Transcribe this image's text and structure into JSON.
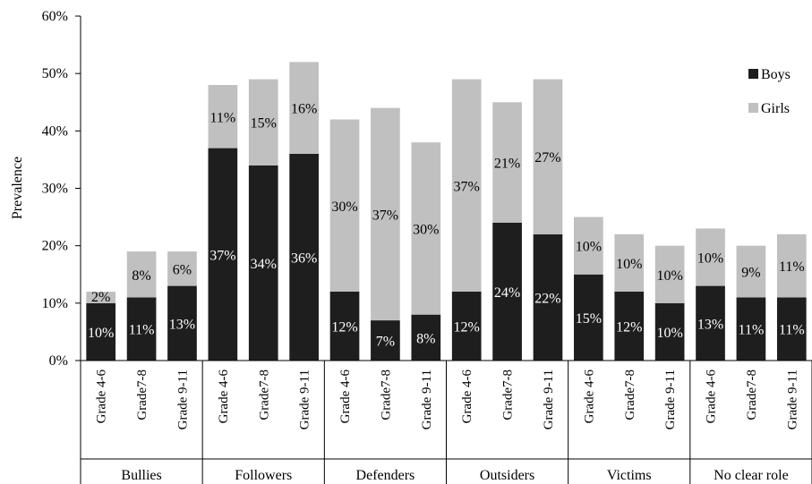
{
  "chart_data": {
    "type": "bar",
    "stacked": true,
    "ylabel": "Prevalence",
    "ylim": [
      0,
      60
    ],
    "yticks": [
      "0%",
      "10%",
      "20%",
      "30%",
      "40%",
      "50%",
      "60%"
    ],
    "groups": [
      {
        "name": "Bullies",
        "categories": [
          "Grade 4-6",
          "Grade7-8",
          "Grade 9-11"
        ]
      },
      {
        "name": "Followers",
        "categories": [
          "Grade 4-6",
          "Grade7-8",
          "Grade 9-11"
        ]
      },
      {
        "name": "Defenders",
        "categories": [
          "Grade 4-6",
          "Grade7-8",
          "Grade 9-11"
        ]
      },
      {
        "name": "Outsiders",
        "categories": [
          "Grade 4-6",
          "Grade7-8",
          "Grade 9-11"
        ]
      },
      {
        "name": "Victims",
        "categories": [
          "Grade 4-6",
          "Grade7-8",
          "Grade 9-11"
        ]
      },
      {
        "name": "No clear role",
        "categories": [
          "Grade 4-6",
          "Grade7-8",
          "Grade 9-11"
        ]
      }
    ],
    "series": [
      {
        "name": "Boys",
        "color": "#1e1e1e",
        "values": [
          10,
          11,
          13,
          37,
          34,
          36,
          12,
          7,
          8,
          12,
          24,
          22,
          15,
          12,
          10,
          13,
          11,
          11
        ],
        "labels": [
          "10%",
          "11%",
          "13%",
          "37%",
          "34%",
          "36%",
          "12%",
          "7%",
          "8%",
          "12%",
          "24%",
          "22%",
          "15%",
          "12%",
          "10%",
          "13%",
          "11%",
          "11%"
        ]
      },
      {
        "name": "Girls",
        "color": "#c0c0c0",
        "values": [
          2,
          8,
          6,
          11,
          15,
          16,
          30,
          37,
          30,
          37,
          21,
          27,
          10,
          10,
          10,
          10,
          9,
          11
        ],
        "labels": [
          "2%",
          "8%",
          "6%",
          "11%",
          "15%",
          "16%",
          "30%",
          "37%",
          "30%",
          "37%",
          "21%",
          "27%",
          "10%",
          "10%",
          "10%",
          "10%",
          "9%",
          "11%"
        ]
      }
    ],
    "grid": false,
    "legend_position": "right"
  }
}
